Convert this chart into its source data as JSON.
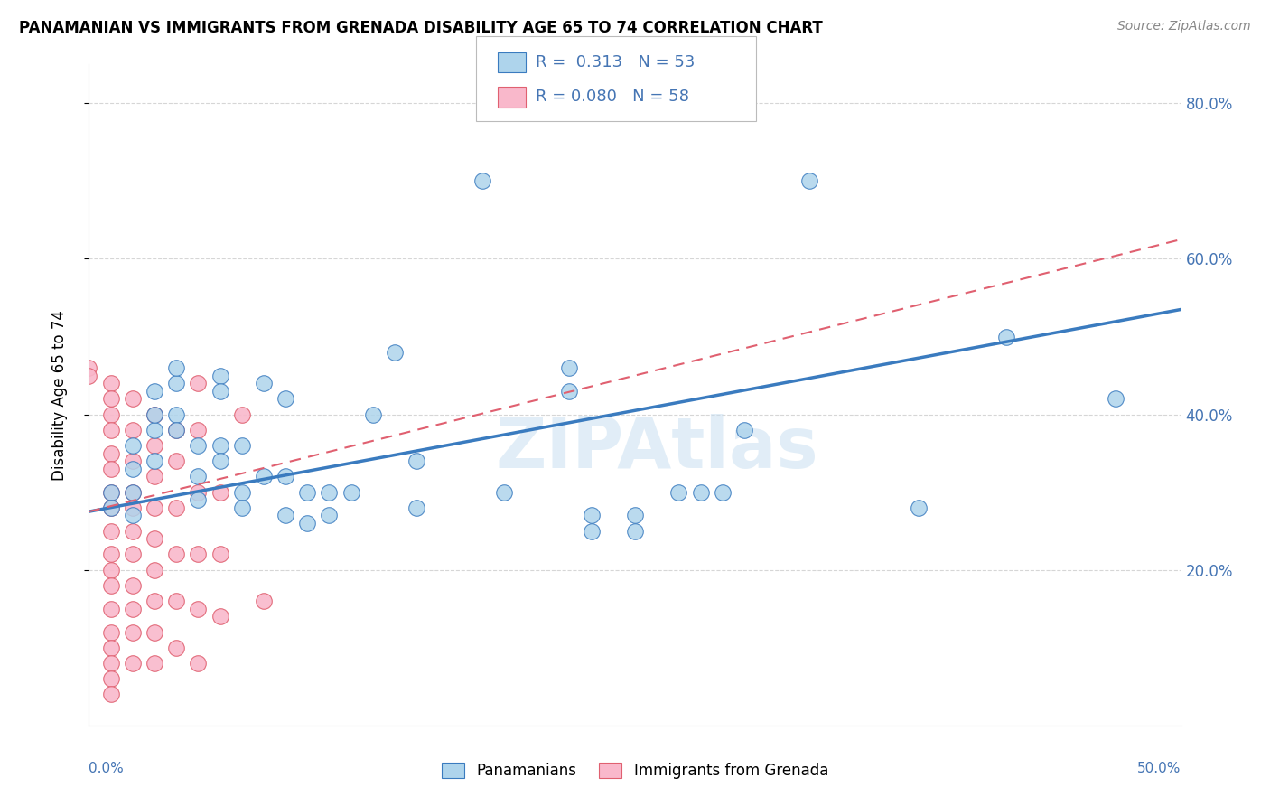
{
  "title": "PANAMANIAN VS IMMIGRANTS FROM GRENADA DISABILITY AGE 65 TO 74 CORRELATION CHART",
  "source": "Source: ZipAtlas.com",
  "ylabel": "Disability Age 65 to 74",
  "xlim": [
    0.0,
    0.5
  ],
  "ylim": [
    0.0,
    0.85
  ],
  "yticks": [
    0.2,
    0.4,
    0.6,
    0.8
  ],
  "ytick_labels": [
    "20.0%",
    "40.0%",
    "60.0%",
    "80.0%"
  ],
  "blue_color": "#aed4ec",
  "pink_color": "#f9b8cb",
  "line_blue": "#3a7bbf",
  "line_pink": "#e06070",
  "text_blue": "#4575b4",
  "watermark": "ZIPAtlas",
  "blue_points": [
    [
      0.01,
      0.3
    ],
    [
      0.01,
      0.28
    ],
    [
      0.02,
      0.33
    ],
    [
      0.02,
      0.36
    ],
    [
      0.02,
      0.3
    ],
    [
      0.02,
      0.27
    ],
    [
      0.03,
      0.38
    ],
    [
      0.03,
      0.43
    ],
    [
      0.03,
      0.4
    ],
    [
      0.03,
      0.34
    ],
    [
      0.04,
      0.4
    ],
    [
      0.04,
      0.44
    ],
    [
      0.04,
      0.46
    ],
    [
      0.04,
      0.38
    ],
    [
      0.05,
      0.36
    ],
    [
      0.05,
      0.32
    ],
    [
      0.05,
      0.29
    ],
    [
      0.06,
      0.36
    ],
    [
      0.06,
      0.34
    ],
    [
      0.06,
      0.45
    ],
    [
      0.06,
      0.43
    ],
    [
      0.07,
      0.36
    ],
    [
      0.07,
      0.3
    ],
    [
      0.07,
      0.28
    ],
    [
      0.08,
      0.44
    ],
    [
      0.08,
      0.32
    ],
    [
      0.09,
      0.42
    ],
    [
      0.09,
      0.32
    ],
    [
      0.09,
      0.27
    ],
    [
      0.1,
      0.3
    ],
    [
      0.1,
      0.26
    ],
    [
      0.11,
      0.3
    ],
    [
      0.11,
      0.27
    ],
    [
      0.12,
      0.3
    ],
    [
      0.13,
      0.4
    ],
    [
      0.14,
      0.48
    ],
    [
      0.15,
      0.34
    ],
    [
      0.15,
      0.28
    ],
    [
      0.18,
      0.7
    ],
    [
      0.19,
      0.3
    ],
    [
      0.22,
      0.46
    ],
    [
      0.22,
      0.43
    ],
    [
      0.23,
      0.27
    ],
    [
      0.23,
      0.25
    ],
    [
      0.25,
      0.27
    ],
    [
      0.25,
      0.25
    ],
    [
      0.27,
      0.3
    ],
    [
      0.28,
      0.3
    ],
    [
      0.29,
      0.3
    ],
    [
      0.3,
      0.38
    ],
    [
      0.33,
      0.7
    ],
    [
      0.38,
      0.28
    ],
    [
      0.42,
      0.5
    ],
    [
      0.47,
      0.42
    ]
  ],
  "pink_points": [
    [
      0.0,
      0.46
    ],
    [
      0.0,
      0.45
    ],
    [
      0.01,
      0.44
    ],
    [
      0.01,
      0.42
    ],
    [
      0.01,
      0.4
    ],
    [
      0.01,
      0.38
    ],
    [
      0.01,
      0.35
    ],
    [
      0.01,
      0.33
    ],
    [
      0.01,
      0.3
    ],
    [
      0.01,
      0.28
    ],
    [
      0.01,
      0.25
    ],
    [
      0.01,
      0.22
    ],
    [
      0.01,
      0.2
    ],
    [
      0.01,
      0.18
    ],
    [
      0.01,
      0.15
    ],
    [
      0.01,
      0.12
    ],
    [
      0.01,
      0.1
    ],
    [
      0.01,
      0.08
    ],
    [
      0.01,
      0.06
    ],
    [
      0.01,
      0.04
    ],
    [
      0.02,
      0.42
    ],
    [
      0.02,
      0.38
    ],
    [
      0.02,
      0.34
    ],
    [
      0.02,
      0.3
    ],
    [
      0.02,
      0.28
    ],
    [
      0.02,
      0.25
    ],
    [
      0.02,
      0.22
    ],
    [
      0.02,
      0.18
    ],
    [
      0.02,
      0.15
    ],
    [
      0.02,
      0.12
    ],
    [
      0.02,
      0.08
    ],
    [
      0.03,
      0.4
    ],
    [
      0.03,
      0.36
    ],
    [
      0.03,
      0.32
    ],
    [
      0.03,
      0.28
    ],
    [
      0.03,
      0.24
    ],
    [
      0.03,
      0.2
    ],
    [
      0.03,
      0.16
    ],
    [
      0.03,
      0.12
    ],
    [
      0.03,
      0.08
    ],
    [
      0.04,
      0.38
    ],
    [
      0.04,
      0.34
    ],
    [
      0.04,
      0.28
    ],
    [
      0.04,
      0.22
    ],
    [
      0.04,
      0.16
    ],
    [
      0.04,
      0.1
    ],
    [
      0.05,
      0.44
    ],
    [
      0.05,
      0.38
    ],
    [
      0.05,
      0.3
    ],
    [
      0.05,
      0.22
    ],
    [
      0.05,
      0.15
    ],
    [
      0.05,
      0.08
    ],
    [
      0.06,
      0.3
    ],
    [
      0.06,
      0.22
    ],
    [
      0.06,
      0.14
    ],
    [
      0.07,
      0.4
    ],
    [
      0.08,
      0.16
    ]
  ],
  "blue_line_x": [
    0.0,
    0.5
  ],
  "blue_line_y": [
    0.275,
    0.535
  ],
  "pink_line_x": [
    0.0,
    0.5
  ],
  "pink_line_y": [
    0.275,
    0.625
  ],
  "bg_color": "#ffffff",
  "grid_color": "#cccccc"
}
